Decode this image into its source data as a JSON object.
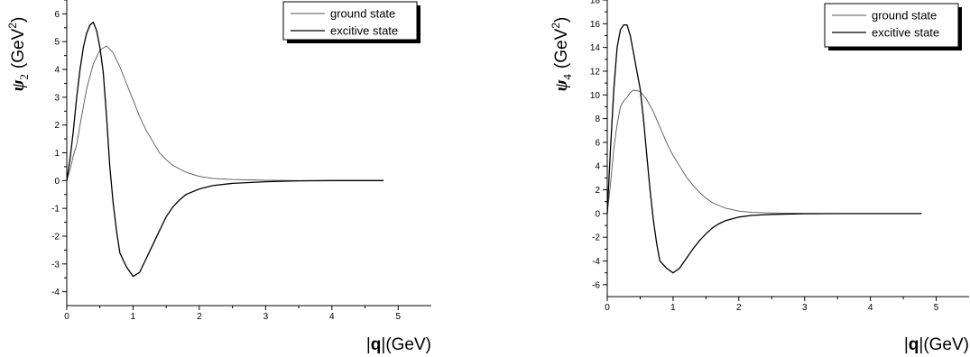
{
  "chart_data": [
    {
      "type": "line",
      "ylabel": {
        "symbol": "ψ",
        "subscript": "2",
        "unit_prefix": "(GeV",
        "unit_sup": "2",
        "unit_suffix": ")"
      },
      "xlabel": {
        "bar": "|",
        "bold": "q",
        "rest": "|(GeV)"
      },
      "xlim": [
        0,
        5.5
      ],
      "ylim": [
        -4.5,
        6.5
      ],
      "xticks": [
        "0",
        "1",
        "2",
        "3",
        "4",
        "5"
      ],
      "yticks": [
        "-4",
        "-3",
        "-2",
        "-1",
        "0",
        "1",
        "2",
        "3",
        "4",
        "5",
        "6"
      ],
      "legend": {
        "position": "top-right",
        "entries": [
          "ground state",
          "excitive state"
        ]
      },
      "series": [
        {
          "name": "ground state",
          "x": [
            0,
            0.05,
            0.1,
            0.15,
            0.2,
            0.3,
            0.4,
            0.5,
            0.6,
            0.7,
            0.8,
            0.9,
            1.0,
            1.1,
            1.2,
            1.3,
            1.4,
            1.5,
            1.6,
            1.8,
            2.0,
            2.2,
            2.5,
            3.0,
            3.5,
            4.0,
            4.78
          ],
          "y": [
            0,
            0.4,
            0.9,
            1.3,
            2.0,
            3.3,
            4.2,
            4.7,
            4.85,
            4.6,
            4.1,
            3.5,
            2.9,
            2.3,
            1.8,
            1.4,
            1.0,
            0.75,
            0.55,
            0.3,
            0.15,
            0.08,
            0.04,
            0.01,
            0,
            0,
            0
          ]
        },
        {
          "name": "excitive state",
          "x": [
            0,
            0.05,
            0.1,
            0.15,
            0.2,
            0.25,
            0.3,
            0.35,
            0.4,
            0.45,
            0.5,
            0.55,
            0.6,
            0.65,
            0.7,
            0.75,
            0.8,
            0.9,
            1.0,
            1.1,
            1.2,
            1.3,
            1.4,
            1.5,
            1.6,
            1.7,
            1.8,
            2.0,
            2.2,
            2.5,
            3.0,
            3.5,
            4.0,
            4.78
          ],
          "y": [
            0,
            0.8,
            1.8,
            3.0,
            4.0,
            4.8,
            5.3,
            5.6,
            5.7,
            5.4,
            4.8,
            3.9,
            2.3,
            0.5,
            -0.8,
            -1.8,
            -2.6,
            -3.1,
            -3.45,
            -3.3,
            -2.8,
            -2.3,
            -1.8,
            -1.3,
            -0.95,
            -0.7,
            -0.5,
            -0.3,
            -0.18,
            -0.1,
            -0.04,
            -0.01,
            0,
            0
          ]
        }
      ]
    },
    {
      "type": "line",
      "ylabel": {
        "symbol": "ψ",
        "subscript": "4",
        "unit_prefix": "(GeV",
        "unit_sup": "2",
        "unit_suffix": ")"
      },
      "xlabel": {
        "bar": "|",
        "bold": "q",
        "rest": "|(GeV)"
      },
      "xlim": [
        0,
        5.5
      ],
      "ylim": [
        -7,
        18
      ],
      "xticks": [
        "0",
        "1",
        "2",
        "3",
        "4",
        "5"
      ],
      "yticks": [
        "-6",
        "-4",
        "-2",
        "0",
        "2",
        "4",
        "6",
        "8",
        "10",
        "12",
        "14",
        "16",
        "18"
      ],
      "legend": {
        "position": "top-right",
        "entries": [
          "ground state",
          "excitive state"
        ]
      },
      "series": [
        {
          "name": "ground state",
          "x": [
            0,
            0.05,
            0.1,
            0.15,
            0.2,
            0.25,
            0.3,
            0.35,
            0.4,
            0.5,
            0.6,
            0.7,
            0.8,
            0.9,
            1.0,
            1.1,
            1.2,
            1.3,
            1.4,
            1.5,
            1.6,
            1.8,
            2.0,
            2.2,
            2.5,
            3.0,
            3.5,
            4.0,
            4.78
          ],
          "y": [
            0,
            2.5,
            5.5,
            7.5,
            9.0,
            9.5,
            9.8,
            10.2,
            10.4,
            10.3,
            9.6,
            8.6,
            7.3,
            6.0,
            4.9,
            4.0,
            3.1,
            2.4,
            1.8,
            1.3,
            0.9,
            0.45,
            0.2,
            0.1,
            0.05,
            0.01,
            0,
            0,
            0
          ]
        },
        {
          "name": "excitive state",
          "x": [
            0,
            0.05,
            0.1,
            0.15,
            0.2,
            0.25,
            0.3,
            0.35,
            0.4,
            0.45,
            0.5,
            0.55,
            0.6,
            0.65,
            0.7,
            0.75,
            0.8,
            0.9,
            1.0,
            1.1,
            1.2,
            1.3,
            1.4,
            1.5,
            1.6,
            1.7,
            1.8,
            2.0,
            2.2,
            2.5,
            3.0,
            3.5,
            4.0,
            4.78
          ],
          "y": [
            0,
            5.5,
            10.5,
            14.0,
            15.5,
            15.9,
            15.9,
            15.0,
            13.5,
            12.0,
            10.5,
            8.0,
            5.0,
            2.0,
            -0.5,
            -2.5,
            -4.0,
            -4.6,
            -5.0,
            -4.6,
            -3.8,
            -3.0,
            -2.3,
            -1.7,
            -1.2,
            -0.85,
            -0.6,
            -0.3,
            -0.15,
            -0.07,
            -0.02,
            0,
            0,
            0
          ]
        }
      ]
    }
  ]
}
